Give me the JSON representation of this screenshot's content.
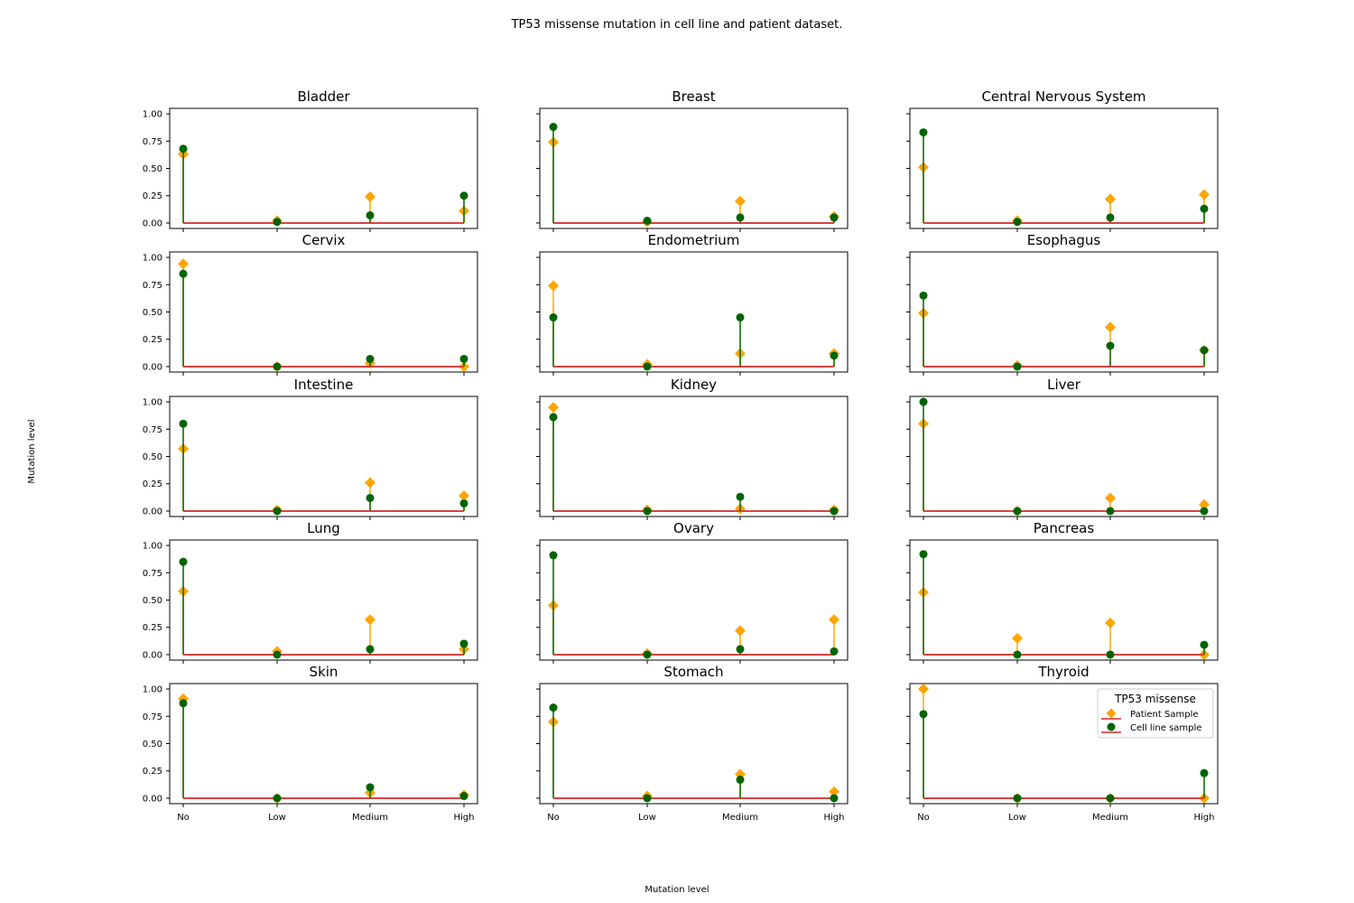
{
  "figure": {
    "title": "TP53 missense mutation in cell line and patient dataset.",
    "xlabel": "Mutation level",
    "ylabel": "Mutation level"
  },
  "colors": {
    "patient": "#ffa500",
    "cell_line": "#006400",
    "baseline": "#d62728"
  },
  "chart_data": {
    "type": "scatter",
    "style": "stem",
    "categories": [
      "No",
      "Low",
      "Medium",
      "High"
    ],
    "yticks": [
      "0.00",
      "0.25",
      "0.50",
      "0.75",
      "1.00"
    ],
    "ylim": [
      -0.05,
      1.05
    ],
    "legend": {
      "title": "TP53 missense",
      "location": "upper-right of Thyroid panel",
      "entries": [
        "Patient Sample",
        "Cell line sample"
      ]
    },
    "panels": [
      {
        "title": "Bladder",
        "patient": [
          0.63,
          0.02,
          0.24,
          0.11
        ],
        "cell_line": [
          0.68,
          0.01,
          0.07,
          0.25
        ]
      },
      {
        "title": "Breast",
        "patient": [
          0.74,
          0.01,
          0.2,
          0.06
        ],
        "cell_line": [
          0.88,
          0.02,
          0.05,
          0.05
        ]
      },
      {
        "title": "Central Nervous System",
        "patient": [
          0.51,
          0.02,
          0.22,
          0.26
        ],
        "cell_line": [
          0.83,
          0.01,
          0.05,
          0.13
        ]
      },
      {
        "title": "Cervix",
        "patient": [
          0.94,
          0.0,
          0.03,
          0.0
        ],
        "cell_line": [
          0.85,
          0.0,
          0.07,
          0.07
        ]
      },
      {
        "title": "Endometrium",
        "patient": [
          0.74,
          0.02,
          0.12,
          0.12
        ],
        "cell_line": [
          0.45,
          0.0,
          0.45,
          0.1
        ]
      },
      {
        "title": "Esophagus",
        "patient": [
          0.49,
          0.01,
          0.36,
          0.15
        ],
        "cell_line": [
          0.65,
          0.0,
          0.19,
          0.15
        ]
      },
      {
        "title": "Intestine",
        "patient": [
          0.57,
          0.01,
          0.26,
          0.14
        ],
        "cell_line": [
          0.8,
          0.0,
          0.12,
          0.07
        ]
      },
      {
        "title": "Kidney",
        "patient": [
          0.95,
          0.01,
          0.02,
          0.01
        ],
        "cell_line": [
          0.86,
          0.0,
          0.13,
          0.0
        ]
      },
      {
        "title": "Liver",
        "patient": [
          0.8,
          0.0,
          0.12,
          0.06
        ],
        "cell_line": [
          1.0,
          0.0,
          0.0,
          0.0
        ]
      },
      {
        "title": "Lung",
        "patient": [
          0.58,
          0.03,
          0.32,
          0.05
        ],
        "cell_line": [
          0.85,
          0.0,
          0.05,
          0.1
        ]
      },
      {
        "title": "Ovary",
        "patient": [
          0.45,
          0.01,
          0.22,
          0.32
        ],
        "cell_line": [
          0.91,
          0.0,
          0.05,
          0.03
        ]
      },
      {
        "title": "Pancreas",
        "patient": [
          0.57,
          0.15,
          0.29,
          0.0
        ],
        "cell_line": [
          0.92,
          0.0,
          0.0,
          0.09
        ]
      },
      {
        "title": "Skin",
        "patient": [
          0.91,
          0.0,
          0.05,
          0.03
        ],
        "cell_line": [
          0.87,
          0.0,
          0.1,
          0.02
        ]
      },
      {
        "title": "Stomach",
        "patient": [
          0.7,
          0.02,
          0.22,
          0.06
        ],
        "cell_line": [
          0.83,
          0.0,
          0.17,
          0.0
        ]
      },
      {
        "title": "Thyroid",
        "patient": [
          1.0,
          0.0,
          0.0,
          0.0
        ],
        "cell_line": [
          0.77,
          0.0,
          0.0,
          0.23
        ]
      }
    ]
  }
}
